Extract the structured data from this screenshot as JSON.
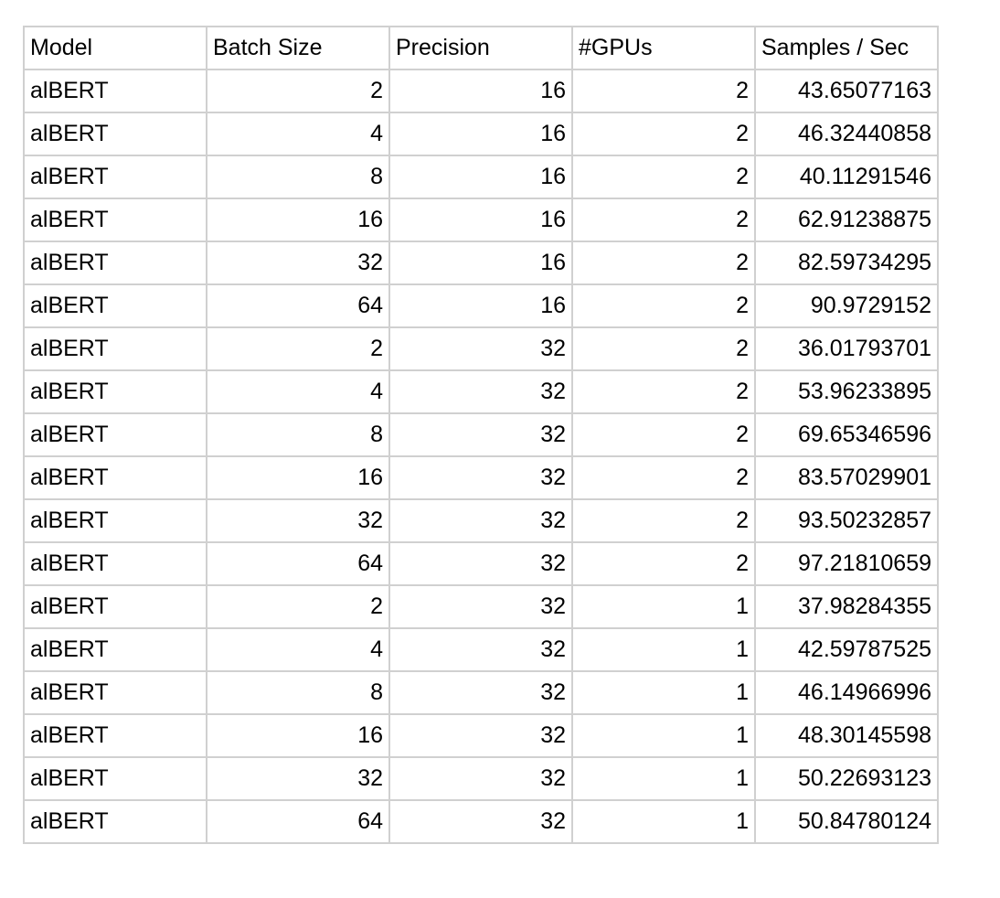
{
  "table": {
    "headers": [
      "Model",
      "Batch Size",
      "Precision",
      "#GPUs",
      "Samples / Sec"
    ],
    "rows": [
      [
        "alBERT",
        "2",
        "16",
        "2",
        "43.65077163"
      ],
      [
        "alBERT",
        "4",
        "16",
        "2",
        "46.32440858"
      ],
      [
        "alBERT",
        "8",
        "16",
        "2",
        "40.11291546"
      ],
      [
        "alBERT",
        "16",
        "16",
        "2",
        "62.91238875"
      ],
      [
        "alBERT",
        "32",
        "16",
        "2",
        "82.59734295"
      ],
      [
        "alBERT",
        "64",
        "16",
        "2",
        "90.9729152"
      ],
      [
        "alBERT",
        "2",
        "32",
        "2",
        "36.01793701"
      ],
      [
        "alBERT",
        "4",
        "32",
        "2",
        "53.96233895"
      ],
      [
        "alBERT",
        "8",
        "32",
        "2",
        "69.65346596"
      ],
      [
        "alBERT",
        "16",
        "32",
        "2",
        "83.57029901"
      ],
      [
        "alBERT",
        "32",
        "32",
        "2",
        "93.50232857"
      ],
      [
        "alBERT",
        "64",
        "32",
        "2",
        "97.21810659"
      ],
      [
        "alBERT",
        "2",
        "32",
        "1",
        "37.98284355"
      ],
      [
        "alBERT",
        "4",
        "32",
        "1",
        "42.59787525"
      ],
      [
        "alBERT",
        "8",
        "32",
        "1",
        "46.14966996"
      ],
      [
        "alBERT",
        "16",
        "32",
        "1",
        "48.30145598"
      ],
      [
        "alBERT",
        "32",
        "32",
        "1",
        "50.22693123"
      ],
      [
        "alBERT",
        "64",
        "32",
        "1",
        "50.84780124"
      ]
    ]
  },
  "colors": {
    "grid_line": "#d0d0d0",
    "text": "#000000",
    "background": "#ffffff"
  }
}
